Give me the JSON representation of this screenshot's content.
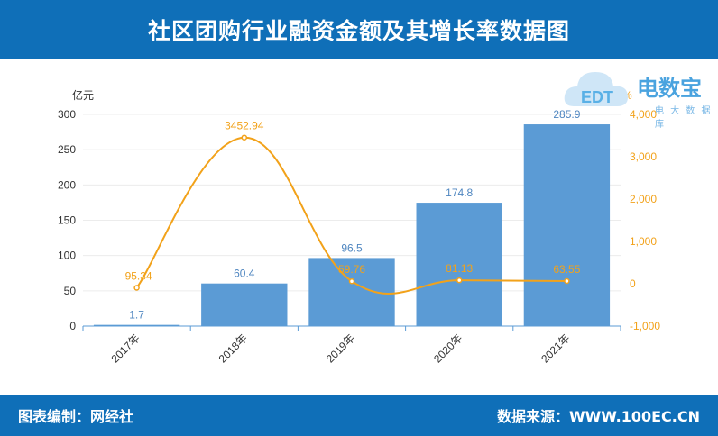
{
  "header": {
    "title": "社区团购行业融资金额及其增长率数据图"
  },
  "footer": {
    "left": "图表编制：网经社",
    "right": "数据来源：WWW.100EC.CN"
  },
  "logo": {
    "brand": "电数宝",
    "sub": "电 大 数 据 库",
    "mark": "EDT"
  },
  "chart_data": {
    "type": "bar+line",
    "categories": [
      "2017年",
      "2018年",
      "2019年",
      "2020年",
      "2021年"
    ],
    "series": [
      {
        "type": "bar",
        "values": [
          1.7,
          60.4,
          96.5,
          174.8,
          285.9
        ],
        "labels": [
          "1.7",
          "60.4",
          "96.5",
          "174.8",
          "285.9"
        ],
        "color": "#5b9bd5",
        "axis": "left"
      },
      {
        "type": "line",
        "values": [
          -95.34,
          3452.94,
          59.76,
          81.13,
          63.55
        ],
        "labels": [
          "-95.34",
          "3452.94",
          "59.76",
          "81.13",
          "63.55"
        ],
        "color": "#f2a21a",
        "axis": "right"
      }
    ],
    "ylabel_left": "亿元",
    "ylabel_right": "%",
    "ylim_left": [
      0,
      300
    ],
    "yticks_left": [
      "0",
      "50",
      "100",
      "150",
      "200",
      "250",
      "300"
    ],
    "ylim_right": [
      -1000,
      4000
    ],
    "yticks_right": [
      "-1,000",
      "0",
      "1,000",
      "2,000",
      "3,000",
      "4,000"
    ],
    "grid": true
  }
}
